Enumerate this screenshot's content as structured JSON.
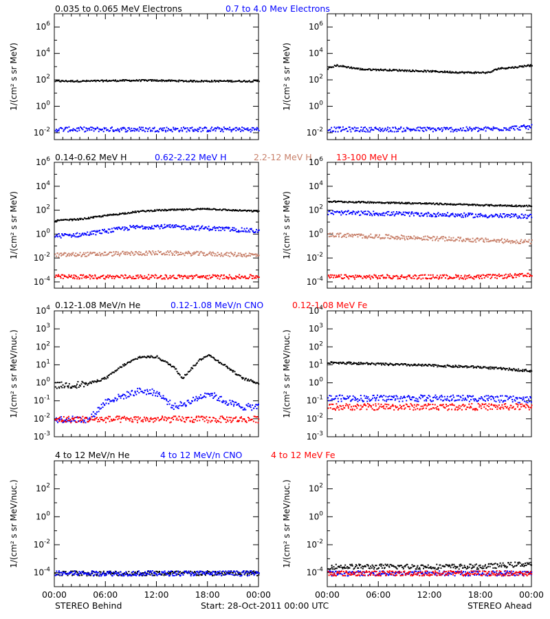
{
  "colors": {
    "black": "#000000",
    "blue": "#0000ff",
    "brown": "#c8806a",
    "red": "#ff0000"
  },
  "footer": {
    "left": "STEREO Behind",
    "center": "Start: 28-Oct-2011 00:00 UTC",
    "right": "STEREO Ahead"
  },
  "x_ticks": [
    "00:00",
    "06:00",
    "12:00",
    "18:00",
    "00:00"
  ],
  "rows": [
    {
      "labels": [
        {
          "text": "0.035 to 0.065 MeV Electrons",
          "color": "#000000"
        },
        {
          "text": "0.7 to 4.0 Mev Electrons",
          "color": "#0000ff"
        }
      ],
      "ylabel": "1/(cm² s sr MeV)"
    },
    {
      "labels": [
        {
          "text": "0.14-0.62 MeV H",
          "color": "#000000"
        },
        {
          "text": "0.62-2.22 MeV H",
          "color": "#0000ff"
        },
        {
          "text": "2.2-12 MeV H",
          "color": "#c8806a"
        },
        {
          "text": "13-100 MeV H",
          "color": "#ff0000"
        }
      ],
      "ylabel": "1/(cm² s sr MeV)"
    },
    {
      "labels": [
        {
          "text": "0.12-1.08 MeV/n He",
          "color": "#000000"
        },
        {
          "text": "0.12-1.08 MeV/n CNO",
          "color": "#0000ff"
        },
        {
          "text": "0.12-1.08 MeV Fe",
          "color": "#ff0000"
        }
      ],
      "ylabel": "1/(cm² s sr MeV/nuc.)"
    },
    {
      "labels": [
        {
          "text": "4 to 12 MeV/n He",
          "color": "#000000"
        },
        {
          "text": "4 to 12 MeV/n CNO",
          "color": "#0000ff"
        },
        {
          "text": "4 to 12 MeV Fe",
          "color": "#ff0000"
        }
      ],
      "ylabel": "1/(cm² s sr MeV/nuc.)"
    }
  ],
  "chart_data": [
    {
      "type": "scatter",
      "panel": "row1-behind",
      "yscale": "log",
      "ylim": [
        0.003,
        10000000
      ],
      "ytick_labels": [
        "10^-2",
        "10^0",
        "10^2",
        "10^4",
        "10^6"
      ],
      "xlim": [
        0,
        24
      ],
      "series": [
        {
          "name": "0.035 to 0.065 MeV Electrons",
          "color": "#000000",
          "x": [
            0,
            4,
            8,
            12,
            16,
            20,
            24
          ],
          "y": [
            90,
            90,
            100,
            100,
            90,
            90,
            90
          ]
        },
        {
          "name": "0.7 to 4.0 Mev Electrons",
          "color": "#0000ff",
          "x": [
            0,
            4,
            8,
            12,
            16,
            20,
            24
          ],
          "y": [
            0.02,
            0.02,
            0.02,
            0.02,
            0.02,
            0.02,
            0.02
          ]
        }
      ]
    },
    {
      "type": "scatter",
      "panel": "row1-ahead",
      "yscale": "log",
      "ylim": [
        0.003,
        10000000
      ],
      "ytick_labels": [
        "10^-2",
        "10^0",
        "10^2",
        "10^4",
        "10^6"
      ],
      "xlim": [
        0,
        24
      ],
      "series": [
        {
          "name": "0.035 to 0.065 MeV Electrons",
          "color": "#000000",
          "x": [
            0,
            1,
            4,
            8,
            12,
            16,
            19,
            20,
            22,
            24
          ],
          "y": [
            800,
            1400,
            700,
            600,
            500,
            400,
            400,
            800,
            1000,
            1500
          ]
        },
        {
          "name": "0.7 to 4.0 Mev Electrons",
          "color": "#0000ff",
          "x": [
            0,
            6,
            12,
            18,
            24
          ],
          "y": [
            0.02,
            0.02,
            0.02,
            0.02,
            0.03
          ]
        }
      ]
    },
    {
      "type": "scatter",
      "panel": "row2-behind",
      "yscale": "log",
      "ylim": [
        3e-05,
        1000000
      ],
      "ytick_labels": [
        "10^-4",
        "10^-2",
        "10^0",
        "10^2",
        "10^4",
        "10^6"
      ],
      "xlim": [
        0,
        24
      ],
      "series": [
        {
          "name": "0.14-0.62 MeV H",
          "color": "#000000",
          "x": [
            0,
            3,
            6,
            8,
            10,
            12,
            14,
            16,
            18,
            20,
            24
          ],
          "y": [
            15,
            20,
            40,
            60,
            90,
            110,
            120,
            130,
            150,
            120,
            90
          ]
        },
        {
          "name": "0.62-2.22 MeV H",
          "color": "#0000ff",
          "x": [
            0,
            3,
            6,
            9,
            12,
            16,
            20,
            24
          ],
          "y": [
            0.8,
            1,
            2,
            4,
            5,
            4,
            3,
            2
          ]
        },
        {
          "name": "2.2-12 MeV H",
          "color": "#c8806a",
          "x": [
            0,
            6,
            12,
            18,
            24
          ],
          "y": [
            0.02,
            0.025,
            0.03,
            0.025,
            0.02
          ]
        },
        {
          "name": "13-100 MeV H",
          "color": "#ff0000",
          "x": [
            0,
            6,
            12,
            18,
            24
          ],
          "y": [
            0.0003,
            0.0003,
            0.0003,
            0.0003,
            0.0003
          ]
        }
      ]
    },
    {
      "type": "scatter",
      "panel": "row2-ahead",
      "yscale": "log",
      "ylim": [
        3e-05,
        1000000
      ],
      "ytick_labels": [
        "10^-4",
        "10^-2",
        "10^0",
        "10^2",
        "10^4",
        "10^6"
      ],
      "xlim": [
        0,
        24
      ],
      "series": [
        {
          "name": "0.14-0.62 MeV H",
          "color": "#000000",
          "x": [
            0,
            6,
            12,
            18,
            24
          ],
          "y": [
            600,
            500,
            400,
            300,
            250
          ]
        },
        {
          "name": "0.62-2.22 MeV H",
          "color": "#0000ff",
          "x": [
            0,
            6,
            12,
            18,
            24
          ],
          "y": [
            70,
            60,
            50,
            40,
            35
          ]
        },
        {
          "name": "2.2-12 MeV H",
          "color": "#c8806a",
          "x": [
            0,
            6,
            12,
            18,
            24
          ],
          "y": [
            1,
            0.7,
            0.5,
            0.35,
            0.25
          ]
        },
        {
          "name": "13-100 MeV H",
          "color": "#ff0000",
          "x": [
            0,
            6,
            12,
            18,
            24
          ],
          "y": [
            0.0003,
            0.0003,
            0.0003,
            0.0003,
            0.0004
          ]
        }
      ]
    },
    {
      "type": "scatter",
      "panel": "row3-behind",
      "yscale": "log",
      "ylim": [
        0.001,
        10000
      ],
      "ytick_labels": [
        "10^-3",
        "10^-2",
        "10^-1",
        "10^0",
        "10^1",
        "10^2",
        "10^3",
        "10^4"
      ],
      "xlim": [
        0,
        24
      ],
      "series": [
        {
          "name": "0.12-1.08 MeV/n He",
          "color": "#000000",
          "x": [
            0,
            2,
            4,
            6,
            8,
            10,
            12,
            14,
            15,
            17,
            18,
            20,
            22,
            24
          ],
          "y": [
            0.8,
            0.8,
            1,
            2,
            10,
            30,
            30,
            8,
            2,
            20,
            40,
            10,
            2,
            1
          ]
        },
        {
          "name": "0.12-1.08 MeV/n CNO",
          "color": "#0000ff",
          "x": [
            0,
            4,
            6,
            8,
            10,
            12,
            14,
            16,
            18,
            20,
            22,
            24
          ],
          "y": [
            0.01,
            0.01,
            0.1,
            0.2,
            0.4,
            0.3,
            0.05,
            0.1,
            0.3,
            0.1,
            0.05,
            0.05
          ]
        },
        {
          "name": "0.12-1.08 MeV Fe",
          "color": "#ff0000",
          "x": [
            0,
            6,
            12,
            18,
            24
          ],
          "y": [
            0.01,
            0.01,
            0.01,
            0.01,
            0.01
          ]
        }
      ]
    },
    {
      "type": "scatter",
      "panel": "row3-ahead",
      "yscale": "log",
      "ylim": [
        0.001,
        10000
      ],
      "ytick_labels": [
        "10^-3",
        "10^-2",
        "10^-1",
        "10^0",
        "10^1",
        "10^2",
        "10^3",
        "10^4"
      ],
      "xlim": [
        0,
        24
      ],
      "series": [
        {
          "name": "0.12-1.08 MeV/n He",
          "color": "#000000",
          "x": [
            0,
            6,
            12,
            18,
            24
          ],
          "y": [
            15,
            12,
            10,
            8,
            5
          ]
        },
        {
          "name": "0.12-1.08 MeV/n CNO",
          "color": "#0000ff",
          "x": [
            0,
            6,
            12,
            18,
            24
          ],
          "y": [
            0.15,
            0.15,
            0.15,
            0.15,
            0.12
          ]
        },
        {
          "name": "0.12-1.08 MeV Fe",
          "color": "#ff0000",
          "x": [
            0,
            6,
            12,
            18,
            24
          ],
          "y": [
            0.05,
            0.05,
            0.05,
            0.05,
            0.05
          ]
        }
      ]
    },
    {
      "type": "scatter",
      "panel": "row4-behind",
      "yscale": "log",
      "ylim": [
        1e-05,
        10000
      ],
      "ytick_labels": [
        "10^-4",
        "10^-2",
        "10^0",
        "10^2"
      ],
      "xlim": [
        0,
        24
      ],
      "series": [
        {
          "name": "4 to 12 MeV/n He",
          "color": "#000000",
          "x": [
            0,
            6,
            12,
            18,
            24
          ],
          "y": [
            0.0001,
            0.0001,
            0.0001,
            0.0001,
            0.0001
          ]
        },
        {
          "name": "4 to 12 MeV/n CNO",
          "color": "#0000ff",
          "x": [
            0,
            6,
            12,
            18,
            24
          ],
          "y": [
            0.0001,
            0.0001,
            0.0001,
            0.0001,
            0.0001
          ]
        }
      ]
    },
    {
      "type": "scatter",
      "panel": "row4-ahead",
      "yscale": "log",
      "ylim": [
        1e-05,
        10000
      ],
      "ytick_labels": [
        "10^-4",
        "10^-2",
        "10^0",
        "10^2"
      ],
      "xlim": [
        0,
        24
      ],
      "series": [
        {
          "name": "4 to 12 MeV/n He",
          "color": "#000000",
          "x": [
            0,
            6,
            12,
            18,
            24
          ],
          "y": [
            0.0003,
            0.0003,
            0.0003,
            0.0003,
            0.0005
          ]
        },
        {
          "name": "4 to 12 MeV/n CNO",
          "color": "#0000ff",
          "x": [
            0,
            6,
            12,
            18,
            24
          ],
          "y": [
            0.0001,
            0.0001,
            0.0001,
            0.0001,
            0.0001
          ]
        },
        {
          "name": "4 to 12 MeV Fe",
          "color": "#ff0000",
          "x": [
            0,
            6,
            12,
            18,
            24
          ],
          "y": [
            0.0001,
            0.0001,
            0.0001,
            0.0001,
            0.0001
          ]
        }
      ]
    }
  ]
}
